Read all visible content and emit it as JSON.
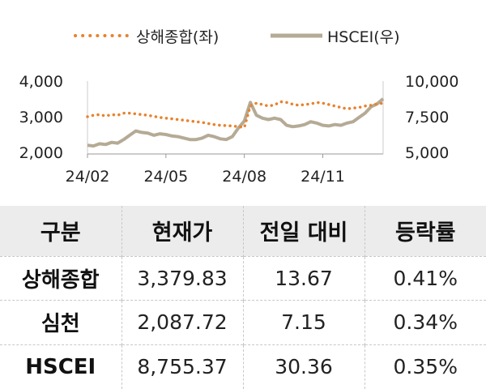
{
  "chart_data": {
    "type": "line",
    "legend_position": "top",
    "grid": false,
    "x_tick_labels": [
      "24/02",
      "24/05",
      "24/08",
      "24/11"
    ],
    "x_tick_index": [
      0,
      13,
      26,
      39
    ],
    "y_left": {
      "ticks": [
        "4,000",
        "3,000",
        "2,000"
      ],
      "tick_values": [
        4000,
        3000,
        2000
      ],
      "range": [
        2000,
        4000
      ]
    },
    "y_right": {
      "ticks": [
        "10,000",
        "7,500",
        "5,000"
      ],
      "tick_values": [
        10000,
        7500,
        5000
      ],
      "range": [
        5000,
        10000
      ]
    },
    "series": [
      {
        "name": "상해종합(좌)",
        "axis": "left",
        "style": "dotted",
        "color": "#E8822E",
        "values": [
          3000,
          3040,
          3060,
          3020,
          3060,
          3040,
          3100,
          3100,
          3080,
          3060,
          3040,
          3010,
          2980,
          2960,
          2940,
          2920,
          2900,
          2880,
          2860,
          2840,
          2810,
          2780,
          2760,
          2750,
          2740,
          2720,
          2700,
          3300,
          3380,
          3340,
          3300,
          3330,
          3420,
          3400,
          3350,
          3320,
          3340,
          3360,
          3400,
          3380,
          3340,
          3300,
          3260,
          3220,
          3240,
          3260,
          3300,
          3320,
          3360,
          3380
        ]
      },
      {
        "name": "HSCEI(우)",
        "axis": "right",
        "style": "solid",
        "color": "#B5AA95",
        "values": [
          5500,
          5450,
          5600,
          5550,
          5700,
          5650,
          5900,
          6200,
          6500,
          6400,
          6350,
          6200,
          6300,
          6250,
          6150,
          6100,
          6000,
          5900,
          5900,
          6000,
          6200,
          6100,
          5950,
          5900,
          6100,
          6700,
          7200,
          8500,
          7600,
          7400,
          7300,
          7400,
          7300,
          6900,
          6800,
          6850,
          6950,
          7150,
          7050,
          6900,
          6850,
          6950,
          6900,
          7050,
          7150,
          7450,
          7750,
          8200,
          8400,
          8755
        ]
      }
    ]
  },
  "table": {
    "headers": [
      "구분",
      "현재가",
      "전일 대비",
      "등락률"
    ],
    "rows": [
      {
        "name": "상해종합",
        "price": "3,379.83",
        "change": "13.67",
        "rate": "0.41%"
      },
      {
        "name": "심천",
        "price": "2,087.72",
        "change": "7.15",
        "rate": "0.34%"
      },
      {
        "name": "HSCEI",
        "price": "8,755.37",
        "change": "30.36",
        "rate": "0.35%"
      }
    ]
  }
}
